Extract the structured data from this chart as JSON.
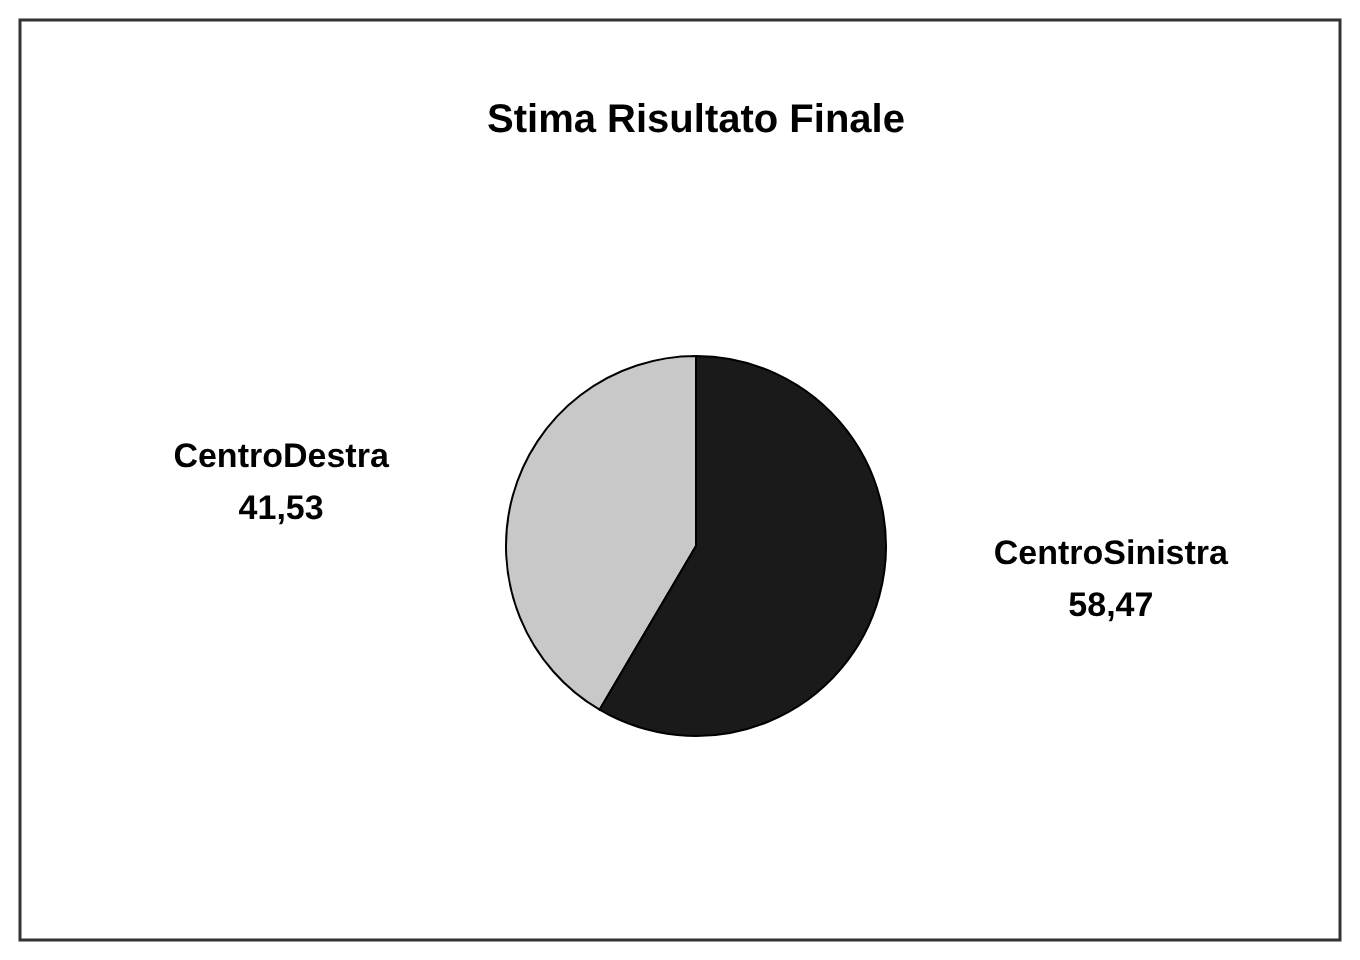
{
  "chart_data": {
    "type": "pie",
    "title": "Stima Risultato Finale",
    "categories": [
      "CentroDestra",
      "CentroSinistra"
    ],
    "values": [
      41.53,
      58.47
    ],
    "value_labels": [
      "41,53",
      "58,47"
    ],
    "colors": [
      "#c8c8c8",
      "#1a1a1a"
    ]
  }
}
